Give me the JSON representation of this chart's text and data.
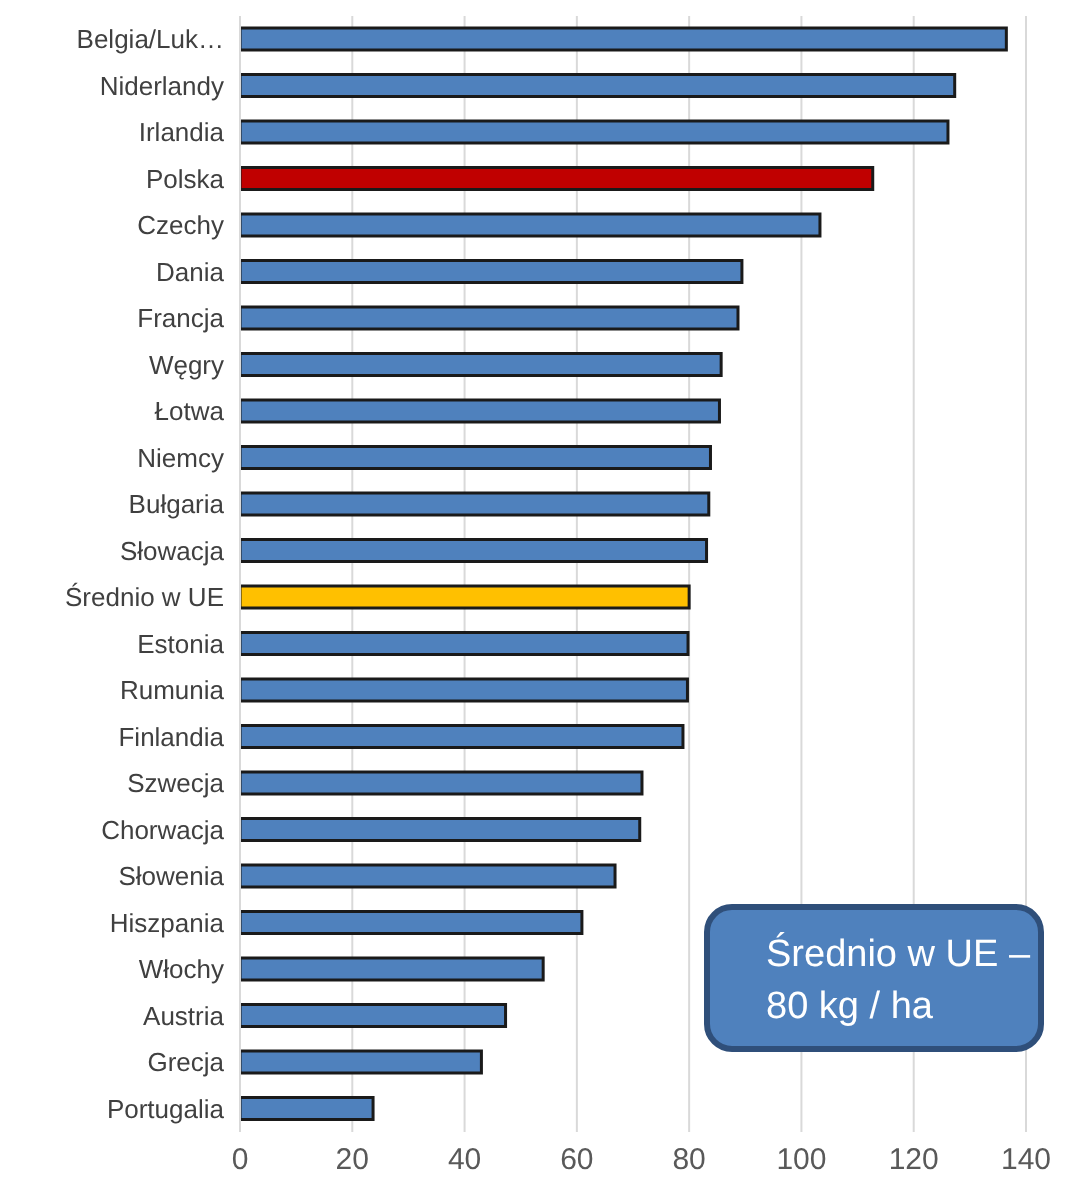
{
  "chart_data": {
    "type": "bar",
    "orientation": "horizontal",
    "categories": [
      "Belgia/Luk…",
      "Niderlandy",
      "Irlandia",
      "Polska",
      "Czechy",
      "Dania",
      "Francja",
      "Węgry",
      "Łotwa",
      "Niemcy",
      "Bułgaria",
      "Słowacja",
      "Średnio w UE",
      "Estonia",
      "Rumunia",
      "Finlandia",
      "Szwecja",
      "Chorwacja",
      "Słowenia",
      "Hiszpania",
      "Włochy",
      "Austria",
      "Grecja",
      "Portugalia"
    ],
    "values": [
      136.5,
      127.3,
      126.1,
      112.7,
      103.3,
      89.4,
      88.7,
      85.7,
      85.4,
      83.8,
      83.5,
      83.1,
      80,
      79.8,
      79.7,
      78.9,
      71.6,
      71.2,
      66.8,
      60.9,
      54.0,
      47.3,
      43.0,
      23.7
    ],
    "colors": [
      "#4f81bd",
      "#4f81bd",
      "#4f81bd",
      "#c00000",
      "#4f81bd",
      "#4f81bd",
      "#4f81bd",
      "#4f81bd",
      "#4f81bd",
      "#4f81bd",
      "#4f81bd",
      "#4f81bd",
      "#ffc000",
      "#4f81bd",
      "#4f81bd",
      "#4f81bd",
      "#4f81bd",
      "#4f81bd",
      "#4f81bd",
      "#4f81bd",
      "#4f81bd",
      "#4f81bd",
      "#4f81bd",
      "#4f81bd"
    ],
    "xlim": [
      0,
      140
    ],
    "xticks": [
      0,
      20,
      40,
      60,
      80,
      100,
      120,
      140
    ],
    "grid": "x",
    "legend": false,
    "annotations": [
      "Średnio w UE – 80 kg / ha"
    ]
  }
}
